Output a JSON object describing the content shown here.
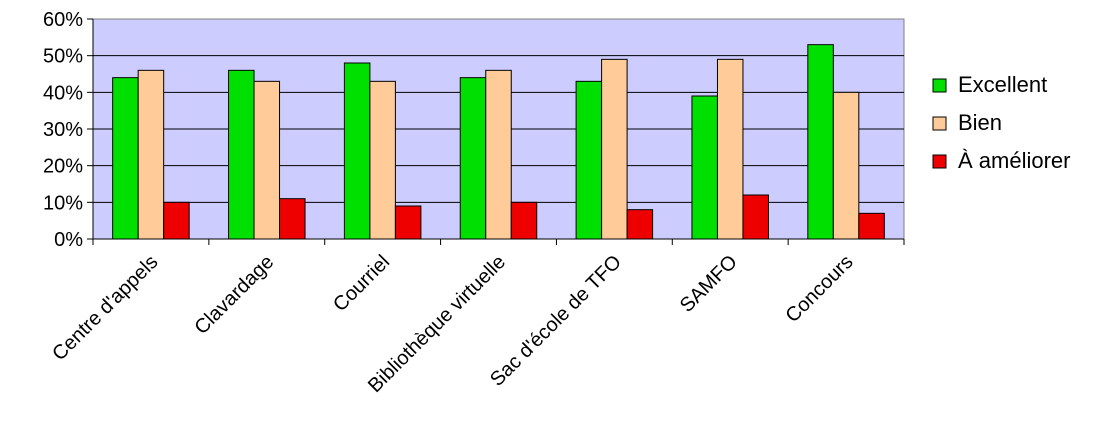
{
  "chart_data": {
    "type": "bar",
    "title": "",
    "xlabel": "",
    "ylabel": "",
    "categories": [
      "Centre d'appels",
      "Clavardage",
      "Courriel",
      "Bibliothèque virtuelle",
      "Sac d'école de TFO",
      "SAMFO",
      "Concours"
    ],
    "series": [
      {
        "name": "Excellent",
        "color": "#00e000",
        "values": [
          44,
          46,
          48,
          44,
          43,
          39,
          53
        ]
      },
      {
        "name": "Bien",
        "color": "#ffcc99",
        "values": [
          46,
          43,
          43,
          46,
          49,
          49,
          40
        ]
      },
      {
        "name": "À améliorer",
        "color": "#ee0000",
        "values": [
          10,
          11,
          9,
          10,
          8,
          12,
          7
        ]
      }
    ],
    "ylim": [
      0,
      60
    ],
    "yticks": [
      "0%",
      "10%",
      "20%",
      "30%",
      "40%",
      "50%",
      "60%"
    ],
    "grid": true,
    "plot_background": "#ccccff",
    "legend_position": "right"
  }
}
